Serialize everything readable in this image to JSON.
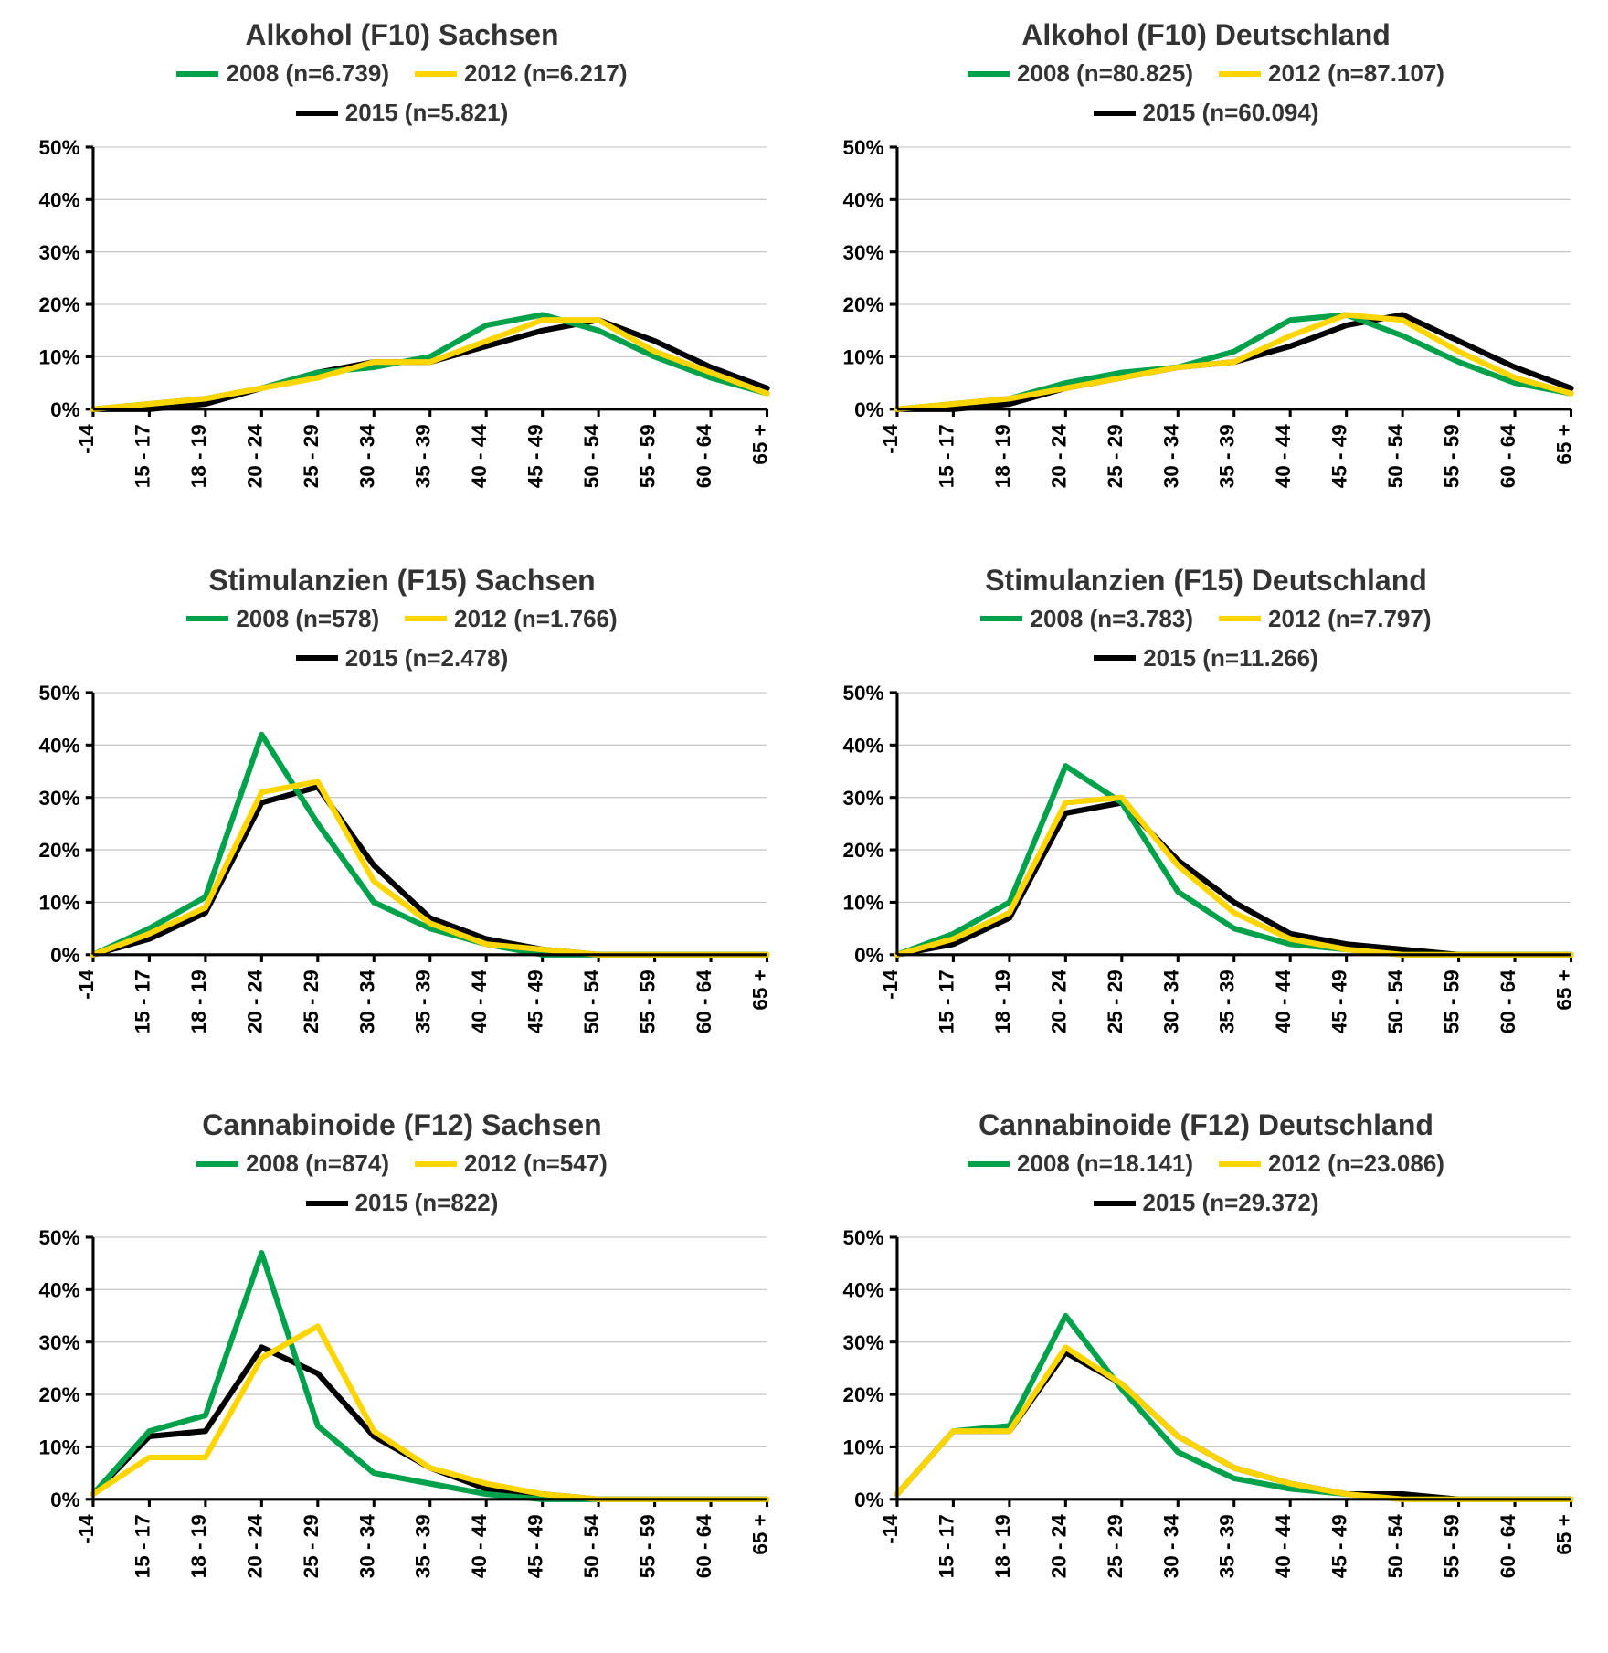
{
  "colors": {
    "s2008": "#00a14b",
    "s2012": "#ffd500",
    "s2015": "#000000",
    "axis": "#000000",
    "grid": "#bfbfbf",
    "bg": "#ffffff"
  },
  "categories": [
    "-14",
    "15 - 17",
    "18 - 19",
    "20 - 24",
    "25 - 29",
    "30 - 34",
    "35 - 39",
    "40 - 44",
    "45 - 49",
    "50 - 54",
    "55 - 59",
    "60 - 64",
    "65 +"
  ],
  "axis": {
    "ylim": [
      0,
      50
    ],
    "ytick_step": 10,
    "ytick_labels": [
      "0%",
      "10%",
      "20%",
      "30%",
      "40%",
      "50%"
    ],
    "label_fontsize": 22,
    "title_fontsize": 32,
    "legend_fontsize": 26,
    "line_width": 6,
    "axis_width": 3,
    "grid_width": 1
  },
  "panels": [
    {
      "title": "Alkohol (F10) Sachsen",
      "series": [
        {
          "key": "s2008",
          "label": "2008 (n=6.739)",
          "data": [
            0,
            1,
            2,
            4,
            7,
            8,
            10,
            16,
            18,
            15,
            10,
            6,
            3
          ]
        },
        {
          "key": "s2012",
          "label": "2012 (n=6.217)",
          "data": [
            0,
            1,
            2,
            4,
            6,
            9,
            9,
            13,
            17,
            17,
            11,
            7,
            3
          ]
        },
        {
          "key": "s2015",
          "label": "2015 (n=5.821)",
          "data": [
            0,
            0,
            1,
            4,
            7,
            9,
            9,
            12,
            15,
            17,
            13,
            8,
            4
          ]
        }
      ]
    },
    {
      "title": "Alkohol (F10) Deutschland",
      "series": [
        {
          "key": "s2008",
          "label": "2008 (n=80.825)",
          "data": [
            0,
            1,
            2,
            5,
            7,
            8,
            11,
            17,
            18,
            14,
            9,
            5,
            3
          ]
        },
        {
          "key": "s2012",
          "label": "2012 (n=87.107)",
          "data": [
            0,
            1,
            2,
            4,
            6,
            8,
            9,
            14,
            18,
            17,
            11,
            6,
            3
          ]
        },
        {
          "key": "s2015",
          "label": "2015 (n=60.094)",
          "data": [
            0,
            0,
            1,
            4,
            6,
            8,
            9,
            12,
            16,
            18,
            13,
            8,
            4
          ]
        }
      ]
    },
    {
      "title": "Stimulanzien (F15) Sachsen",
      "series": [
        {
          "key": "s2008",
          "label": "2008 (n=578)",
          "data": [
            0,
            5,
            11,
            42,
            25,
            10,
            5,
            2,
            0,
            0,
            0,
            0,
            0
          ]
        },
        {
          "key": "s2012",
          "label": "2012 (n=1.766)",
          "data": [
            0,
            4,
            9,
            31,
            33,
            14,
            6,
            2,
            1,
            0,
            0,
            0,
            0
          ]
        },
        {
          "key": "s2015",
          "label": "2015 (n=2.478)",
          "data": [
            0,
            3,
            8,
            29,
            32,
            17,
            7,
            3,
            1,
            0,
            0,
            0,
            0
          ]
        }
      ]
    },
    {
      "title": "Stimulanzien (F15) Deutschland",
      "series": [
        {
          "key": "s2008",
          "label": "2008 (n=3.783)",
          "data": [
            0,
            4,
            10,
            36,
            29,
            12,
            5,
            2,
            1,
            0,
            0,
            0,
            0
          ]
        },
        {
          "key": "s2012",
          "label": "2012 (n=7.797)",
          "data": [
            0,
            3,
            8,
            29,
            30,
            17,
            8,
            3,
            1,
            0,
            0,
            0,
            0
          ]
        },
        {
          "key": "s2015",
          "label": "2015 (n=11.266)",
          "data": [
            0,
            2,
            7,
            27,
            29,
            18,
            10,
            4,
            2,
            1,
            0,
            0,
            0
          ]
        }
      ]
    },
    {
      "title": "Cannabinoide (F12) Sachsen",
      "series": [
        {
          "key": "s2008",
          "label": "2008 (n=874)",
          "data": [
            1,
            13,
            16,
            47,
            14,
            5,
            3,
            1,
            0,
            0,
            0,
            0,
            0
          ]
        },
        {
          "key": "s2012",
          "label": "2012 (n=547)",
          "data": [
            1,
            8,
            8,
            27,
            33,
            13,
            6,
            3,
            1,
            0,
            0,
            0,
            0
          ]
        },
        {
          "key": "s2015",
          "label": "2015 (n=822)",
          "data": [
            1,
            12,
            13,
            29,
            24,
            12,
            6,
            2,
            1,
            0,
            0,
            0,
            0
          ]
        }
      ]
    },
    {
      "title": "Cannabinoide (F12) Deutschland",
      "series": [
        {
          "key": "s2008",
          "label": "2008 (n=18.141)",
          "data": [
            1,
            13,
            14,
            35,
            21,
            9,
            4,
            2,
            1,
            0,
            0,
            0,
            0
          ]
        },
        {
          "key": "s2012",
          "label": "2012 (n=23.086)",
          "data": [
            1,
            13,
            13,
            29,
            22,
            12,
            6,
            3,
            1,
            0,
            0,
            0,
            0
          ]
        },
        {
          "key": "s2015",
          "label": "2015 (n=29.372)",
          "data": [
            1,
            13,
            13,
            28,
            22,
            12,
            6,
            3,
            1,
            1,
            0,
            0,
            0
          ]
        }
      ]
    }
  ]
}
